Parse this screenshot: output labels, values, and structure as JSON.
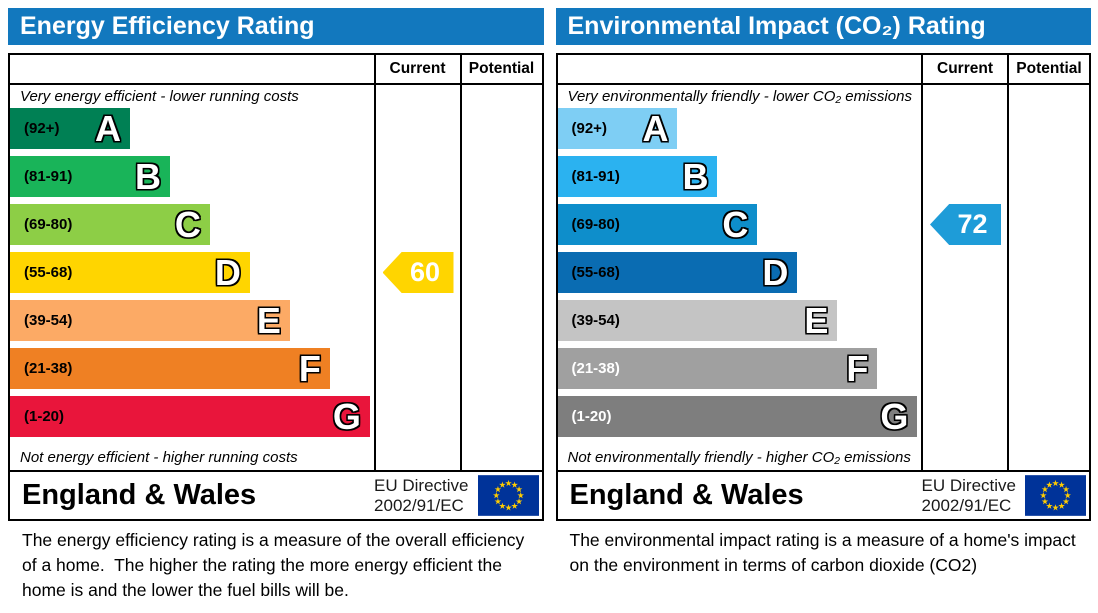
{
  "theme": {
    "header_blue": "#1278be",
    "eu_flag_blue": "#003399",
    "eu_flag_star_yellow": "#ffcc00",
    "border_black": "#000000"
  },
  "panels": [
    {
      "title": "Energy Efficiency Rating",
      "columns": {
        "current": "Current",
        "potential": "Potential"
      },
      "top_note": "Very energy efficient - lower running costs",
      "bottom_note": "Not energy efficient - higher running costs",
      "bands": [
        {
          "letter": "A",
          "range": "(92+)",
          "color": "#008054",
          "label_color": "#000000",
          "width_pct": 33
        },
        {
          "letter": "B",
          "range": "(81-91)",
          "color": "#19b459",
          "label_color": "#000000",
          "width_pct": 44
        },
        {
          "letter": "C",
          "range": "(69-80)",
          "color": "#8dce46",
          "label_color": "#000000",
          "width_pct": 55
        },
        {
          "letter": "D",
          "range": "(55-68)",
          "color": "#ffd500",
          "label_color": "#000000",
          "width_pct": 66
        },
        {
          "letter": "E",
          "range": "(39-54)",
          "color": "#fcaa65",
          "label_color": "#000000",
          "width_pct": 77
        },
        {
          "letter": "F",
          "range": "(21-38)",
          "color": "#ef8023",
          "label_color": "#000000",
          "width_pct": 88
        },
        {
          "letter": "G",
          "range": "(1-20)",
          "color": "#e9153b",
          "label_color": "#000000",
          "width_pct": 99
        }
      ],
      "current": {
        "value": "60",
        "band": "D",
        "color": "#ffd500",
        "text_color": "#ffffff"
      },
      "footer": {
        "region": "England & Wales",
        "directive_line1": "EU Directive",
        "directive_line2": "2002/91/EC"
      },
      "description": "The energy efficiency rating is a measure of the overall efficiency of a home.  The higher the rating the more energy efficient the home is and the lower the fuel bills will be."
    },
    {
      "title": "Environmental Impact (CO₂) Rating",
      "columns": {
        "current": "Current",
        "potential": "Potential"
      },
      "top_note": "Very environmentally friendly - lower CO₂ emissions",
      "bottom_note": "Not environmentally friendly - higher CO₂ emissions",
      "bands": [
        {
          "letter": "A",
          "range": "(92+)",
          "color": "#7ecef4",
          "label_color": "#000000",
          "width_pct": 33
        },
        {
          "letter": "B",
          "range": "(81-91)",
          "color": "#2bb2f0",
          "label_color": "#000000",
          "width_pct": 44
        },
        {
          "letter": "C",
          "range": "(69-80)",
          "color": "#0e8ecb",
          "label_color": "#000000",
          "width_pct": 55
        },
        {
          "letter": "D",
          "range": "(55-68)",
          "color": "#0a6cb2",
          "label_color": "#000000",
          "width_pct": 66
        },
        {
          "letter": "E",
          "range": "(39-54)",
          "color": "#c4c4c4",
          "label_color": "#000000",
          "width_pct": 77
        },
        {
          "letter": "F",
          "range": "(21-38)",
          "color": "#a0a0a0",
          "label_color": "#ffffff",
          "width_pct": 88
        },
        {
          "letter": "G",
          "range": "(1-20)",
          "color": "#7e7e7e",
          "label_color": "#ffffff",
          "width_pct": 99
        }
      ],
      "current": {
        "value": "72",
        "band": "C",
        "color": "#1e9cd8",
        "text_color": "#ffffff"
      },
      "footer": {
        "region": "England & Wales",
        "directive_line1": "EU Directive",
        "directive_line2": "2002/91/EC"
      },
      "description": "The environmental impact rating is a measure of a home's impact on the environment in terms of carbon dioxide (CO2)"
    }
  ],
  "chart_data": [
    {
      "type": "bar",
      "title": "Energy Efficiency Rating",
      "categories": [
        "A (92+)",
        "B (81-91)",
        "C (69-80)",
        "D (55-68)",
        "E (39-54)",
        "F (21-38)",
        "G (1-20)"
      ],
      "band_colors": [
        "#008054",
        "#19b459",
        "#8dce46",
        "#ffd500",
        "#fcaa65",
        "#ef8023",
        "#e9153b"
      ],
      "columns": [
        "Current",
        "Potential"
      ],
      "current_value": 60,
      "current_band": "D",
      "potential_value": null,
      "region": "England & Wales",
      "directive": "EU Directive 2002/91/EC"
    },
    {
      "type": "bar",
      "title": "Environmental Impact (CO₂) Rating",
      "categories": [
        "A (92+)",
        "B (81-91)",
        "C (69-80)",
        "D (55-68)",
        "E (39-54)",
        "F (21-38)",
        "G (1-20)"
      ],
      "band_colors": [
        "#7ecef4",
        "#2bb2f0",
        "#0e8ecb",
        "#0a6cb2",
        "#c4c4c4",
        "#a0a0a0",
        "#7e7e7e"
      ],
      "columns": [
        "Current",
        "Potential"
      ],
      "current_value": 72,
      "current_band": "C",
      "potential_value": null,
      "region": "England & Wales",
      "directive": "EU Directive 2002/91/EC"
    }
  ]
}
